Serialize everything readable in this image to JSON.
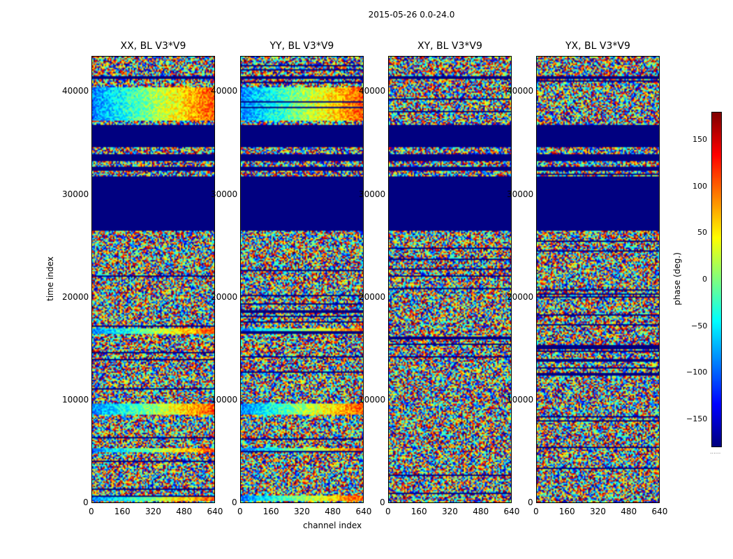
{
  "figure": {
    "suptitle": "2015-05-26 0.0-24.0",
    "xlabel": "channel index",
    "ylabel": "time index",
    "colorbar_label": "phase (deg.)",
    "colorbar_note": "......"
  },
  "chart_data": {
    "type": "heatmap",
    "colormap": "jet",
    "panels": [
      {
        "title": "XX, BL V3*V9",
        "pol": "XX"
      },
      {
        "title": "YY, BL V3*V9",
        "pol": "YY"
      },
      {
        "title": "XY, BL V3*V9",
        "pol": "XY"
      },
      {
        "title": "YX, BL V3*V9",
        "pol": "YX"
      }
    ],
    "xlim": [
      0,
      640
    ],
    "ylim": [
      0,
      43500
    ],
    "x_ticks": [
      0,
      160,
      320,
      480,
      640
    ],
    "y_ticks": [
      0,
      10000,
      20000,
      30000,
      40000
    ],
    "clim": [
      -180,
      180
    ],
    "colorbar_ticks": [
      150,
      100,
      50,
      0,
      -50,
      -100,
      -150
    ],
    "masked_time_ranges": [
      [
        26500,
        31800
      ],
      [
        32300,
        32800
      ],
      [
        33300,
        34000
      ],
      [
        34700,
        36800
      ],
      [
        41300,
        41600
      ]
    ],
    "coherent_bands": [
      {
        "t0": 16400,
        "t1": 17000,
        "pols": [
          "XX",
          "YY"
        ]
      },
      {
        "t0": 8500,
        "t1": 9700,
        "pols": [
          "XX",
          "YY"
        ]
      },
      {
        "t0": 4900,
        "t1": 5300,
        "pols": [
          "XX",
          "YY"
        ]
      },
      {
        "t0": 200,
        "t1": 700,
        "pols": [
          "XX",
          "YY"
        ]
      },
      {
        "t0": 37200,
        "t1": 40500,
        "pols": [
          "XX",
          "YY"
        ]
      }
    ]
  }
}
